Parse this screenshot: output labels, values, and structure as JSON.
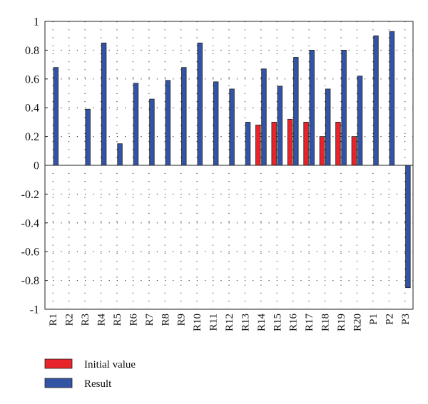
{
  "chart_data": {
    "type": "bar",
    "categories": [
      "R1",
      "R2",
      "R3",
      "R4",
      "R5",
      "R6",
      "R7",
      "R8",
      "R9",
      "R10",
      "R11",
      "R12",
      "R13",
      "R14",
      "R15",
      "R16",
      "R17",
      "R18",
      "R19",
      "R20",
      "P1",
      "P2",
      "P3"
    ],
    "series": [
      {
        "name": "Initial value",
        "color": "#e8232a",
        "values": [
          0,
          0,
          0,
          0,
          0,
          0,
          0,
          0,
          0,
          0,
          0,
          0,
          0,
          0.28,
          0.3,
          0.32,
          0.3,
          0.2,
          0.3,
          0.2,
          0,
          0,
          0
        ]
      },
      {
        "name": "Result",
        "color": "#3353a4",
        "values": [
          0.68,
          0,
          0.39,
          0.85,
          0.15,
          0.57,
          0.46,
          0.59,
          0.68,
          0.85,
          0.58,
          0.53,
          0.3,
          0.67,
          0.55,
          0.75,
          0.8,
          0.53,
          0.8,
          0.62,
          0.9,
          0.93,
          -0.85
        ]
      }
    ],
    "ylim": [
      -1,
      1
    ],
    "yticks": [
      1,
      0.8,
      0.6,
      0.4,
      0.2,
      0,
      -0.2,
      -0.4,
      -0.6,
      -0.8,
      -1
    ],
    "ytick_labels": [
      "1",
      "0.8",
      "0.6",
      "0.4",
      "0.2",
      "0",
      "-0.2",
      "-0.4",
      "-0.6",
      "-0.8",
      "-1"
    ],
    "grid": true,
    "legend_position": "bottom-left"
  }
}
